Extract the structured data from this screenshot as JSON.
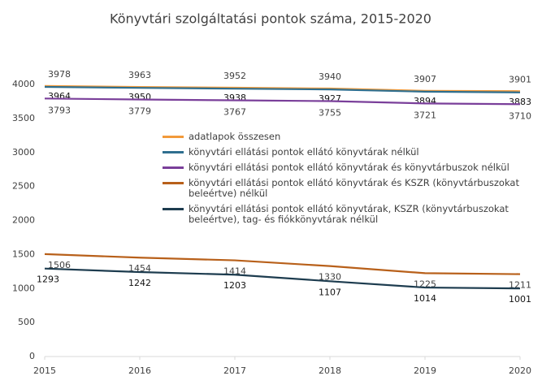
{
  "chart_data": {
    "type": "line",
    "title": "Könyvtári szolgáltatási pontok száma, 2015-2020",
    "x": [
      2015,
      2016,
      2017,
      2018,
      2019,
      2020
    ],
    "xlim": [
      2015,
      2020
    ],
    "xticks": [
      2015,
      2016,
      2017,
      2018,
      2019,
      2020
    ],
    "ylim": [
      0,
      4000
    ],
    "yticks": [
      0,
      500,
      1000,
      1500,
      2000,
      2500,
      3000,
      3500,
      4000
    ],
    "grid": false,
    "legend": "center",
    "series": [
      {
        "name": "adatlapok összesen",
        "color": "#f29a3a",
        "values": [
          3978,
          3963,
          3952,
          3940,
          3907,
          3901
        ]
      },
      {
        "name": "könyvtári ellátási pontok ellátó könyvtárak nélkül",
        "color": "#2f6f8f",
        "values": [
          3964,
          3950,
          3938,
          3927,
          3894,
          3883
        ]
      },
      {
        "name": "könyvtári ellátási pontok ellátó könyvtárak és könyvtárbuszok nélkül",
        "color": "#7a3f9a",
        "values": [
          3793,
          3779,
          3767,
          3755,
          3721,
          3710
        ]
      },
      {
        "name": "könyvtári ellátási pontok ellátó könyvtárak és KSZR (könyvtárbuszokat beleértve) nélkül",
        "color": "#b8601a",
        "values": [
          1506,
          1454,
          1414,
          1330,
          1225,
          1211
        ]
      },
      {
        "name": "könyvtári ellátási pontok ellátó könyvtárak, KSZR (könyvtárbuszokat beleértve), tag- és fiókkönyvtárak nélkül",
        "color": "#1d3c4f",
        "values": [
          1293,
          1242,
          1203,
          1107,
          1014,
          1001
        ]
      }
    ]
  }
}
